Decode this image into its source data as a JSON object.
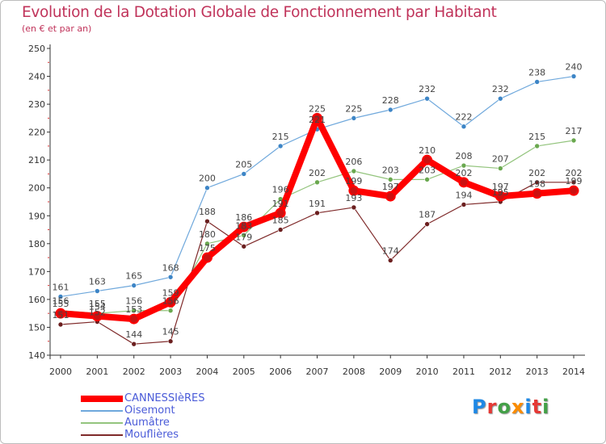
{
  "title": "Evolution de la Dotation Globale de Fonctionnement par Habitant",
  "subtitle": "(en € et par an)",
  "logo_text": "Proxiti",
  "logo_colors": [
    "#1e88e5",
    "#e53935",
    "#43a047",
    "#fb8c00",
    "#1e88e5",
    "#e53935",
    "#43a047"
  ],
  "chart_data": {
    "type": "line",
    "title": "Evolution de la Dotation Globale de Fonctionnement par Habitant",
    "subtitle": "(en € et par an)",
    "xlabel": "",
    "ylabel": "",
    "ylim": [
      140,
      250
    ],
    "yticks": [
      140,
      150,
      160,
      170,
      180,
      190,
      200,
      210,
      220,
      230,
      240,
      250
    ],
    "grid": false,
    "legend_position": "bottom-left",
    "x": [
      "2000",
      "2001",
      "2002",
      "2003",
      "2004",
      "2005",
      "2006",
      "2007",
      "2008",
      "2009",
      "2010",
      "2011",
      "2012",
      "2013",
      "2014"
    ],
    "series": [
      {
        "name": "CANNESSIèRES",
        "color": "#ff0000",
        "width": 8,
        "marker_color": "#cc1111",
        "marker_radius": 5.5,
        "values": [
          155,
          154,
          153,
          159,
          175,
          186,
          191,
          225,
          199,
          197,
          210,
          202,
          197,
          198,
          199
        ]
      },
      {
        "name": "Oisemont",
        "color": "#6fa8dc",
        "width": 1.2,
        "marker_color": "#3d85c6",
        "marker_radius": 3,
        "values": [
          161,
          163,
          165,
          168,
          200,
          205,
          215,
          221,
          225,
          228,
          232,
          222,
          232,
          238,
          240
        ]
      },
      {
        "name": "Aumâtre",
        "color": "#93c47d",
        "width": 1.2,
        "marker_color": "#6aa84f",
        "marker_radius": 3,
        "values": [
          156,
          155,
          156,
          156,
          180,
          183,
          196,
          202,
          206,
          203,
          203,
          208,
          207,
          215,
          217
        ]
      },
      {
        "name": "Mouflières",
        "color": "#7f2a2a",
        "width": 1.2,
        "marker_color": "#6b1f1f",
        "marker_radius": 3,
        "values": [
          151,
          152,
          144,
          145,
          188,
          179,
          185,
          191,
          193,
          174,
          187,
          194,
          195,
          202,
          202
        ]
      }
    ]
  }
}
